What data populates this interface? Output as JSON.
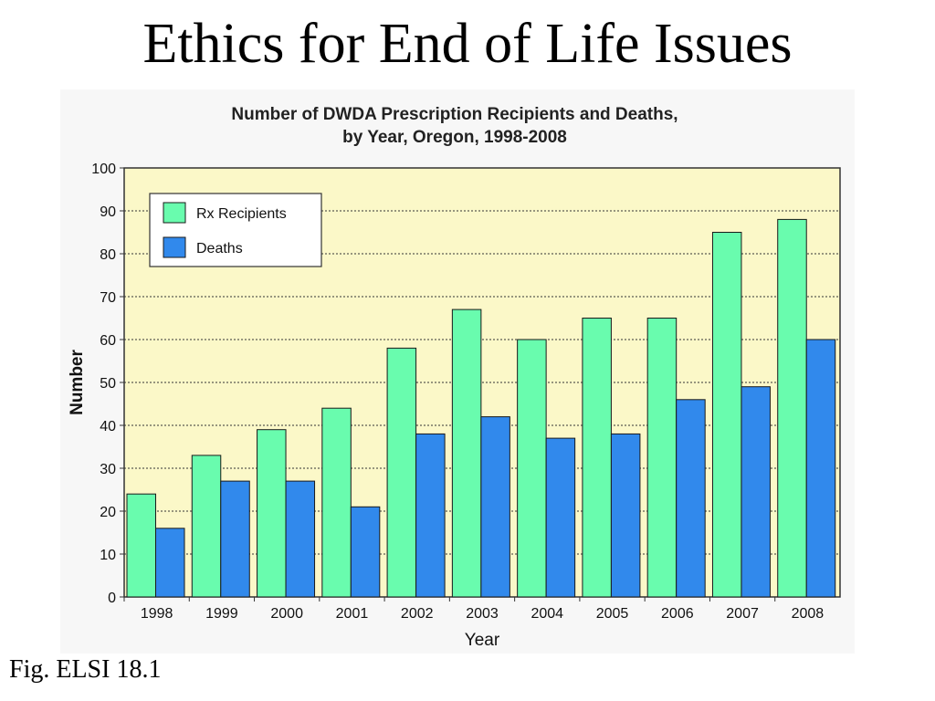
{
  "slide": {
    "title": "Ethics for End of Life Issues",
    "caption": "Fig. ELSI 18.1"
  },
  "colors": {
    "plot_background": "#fbf8c8",
    "recipients": "#69fcae",
    "deaths": "#3189ec",
    "bar_outline": "#1a1a1a",
    "gridline": "#333333"
  },
  "chart_data": {
    "type": "bar",
    "title": "Number of DWDA Prescription Recipients and Deaths,",
    "subtitle": "by Year, Oregon, 1998-2008",
    "xlabel": "Year",
    "ylabel": "Number",
    "ylim": [
      0,
      100
    ],
    "yticks": [
      0,
      10,
      20,
      30,
      40,
      50,
      60,
      70,
      80,
      90,
      100
    ],
    "grid": true,
    "legend_position": "top-left",
    "categories": [
      "1998",
      "1999",
      "2000",
      "2001",
      "2002",
      "2003",
      "2004",
      "2005",
      "2006",
      "2007",
      "2008"
    ],
    "series": [
      {
        "name": "Rx Recipients",
        "values": [
          24,
          33,
          39,
          44,
          58,
          67,
          60,
          65,
          65,
          85,
          88
        ]
      },
      {
        "name": "Deaths",
        "values": [
          16,
          27,
          27,
          21,
          38,
          42,
          37,
          38,
          46,
          49,
          60
        ]
      }
    ]
  }
}
